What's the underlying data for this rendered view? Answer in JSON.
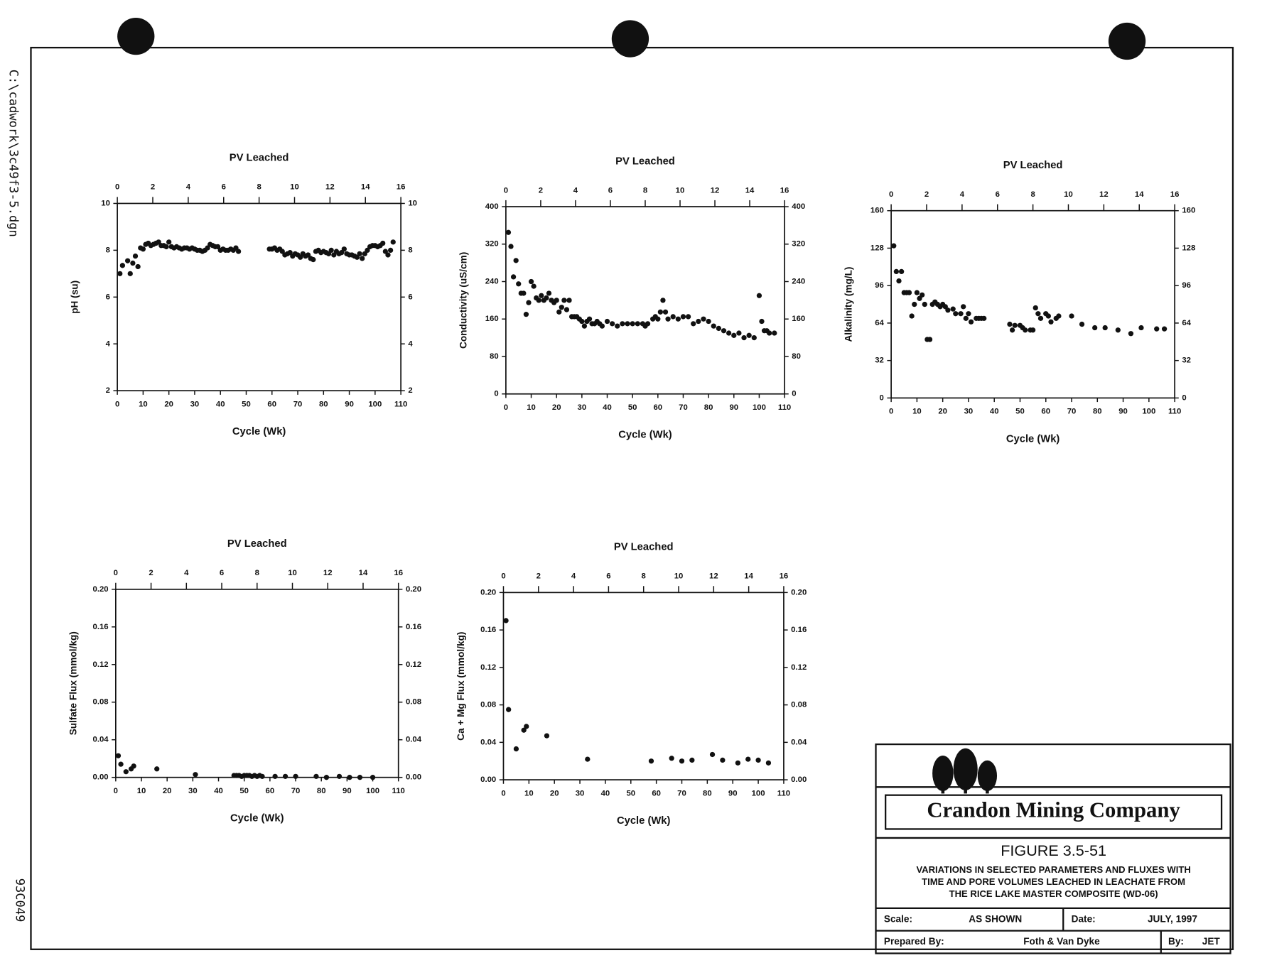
{
  "chart_data": [
    {
      "type": "scatter",
      "title": "PV Leached",
      "xlabel": "Cycle (Wk)",
      "ylabel": "pH (su)",
      "xlim": [
        0,
        110
      ],
      "xticks": [
        0,
        10,
        20,
        30,
        40,
        50,
        60,
        70,
        80,
        90,
        100,
        110
      ],
      "x2lim": [
        0,
        16
      ],
      "x2ticks": [
        0,
        2,
        4,
        6,
        8,
        10,
        12,
        14,
        16
      ],
      "ylim": [
        2,
        10
      ],
      "yticks": [
        2,
        4,
        6,
        8,
        10
      ],
      "color": "#111111",
      "x": [
        1,
        2,
        4,
        5,
        6,
        7,
        8,
        9,
        10,
        11,
        12,
        13,
        14,
        15,
        16,
        17,
        18,
        19,
        20,
        21,
        22,
        23,
        24,
        25,
        26,
        27,
        28,
        29,
        30,
        31,
        32,
        33,
        34,
        35,
        36,
        37,
        38,
        39,
        40,
        41,
        42,
        43,
        44,
        45,
        46,
        47,
        59,
        60,
        61,
        62,
        63,
        64,
        65,
        66,
        67,
        68,
        69,
        70,
        71,
        72,
        73,
        74,
        75,
        76,
        77,
        78,
        79,
        80,
        81,
        82,
        83,
        84,
        85,
        86,
        87,
        88,
        89,
        90,
        91,
        92,
        93,
        94,
        95,
        96,
        97,
        98,
        99,
        100,
        101,
        102,
        103,
        104,
        105,
        106,
        107
      ],
      "values": [
        7.0,
        7.35,
        7.55,
        7.0,
        7.45,
        7.75,
        7.3,
        8.1,
        8.05,
        8.25,
        8.3,
        8.2,
        8.25,
        8.3,
        8.35,
        8.2,
        8.2,
        8.15,
        8.35,
        8.15,
        8.1,
        8.15,
        8.1,
        8.05,
        8.1,
        8.1,
        8.05,
        8.1,
        8.05,
        8.0,
        8.0,
        7.95,
        8.0,
        8.1,
        8.25,
        8.2,
        8.15,
        8.15,
        8.0,
        8.05,
        8.0,
        8.0,
        8.05,
        8.0,
        8.1,
        7.95,
        8.05,
        8.05,
        8.1,
        8.0,
        8.05,
        7.95,
        7.8,
        7.85,
        7.9,
        7.75,
        7.85,
        7.8,
        7.7,
        7.85,
        7.75,
        7.8,
        7.65,
        7.6,
        7.95,
        8.0,
        7.9,
        7.95,
        7.9,
        7.85,
        8.0,
        7.8,
        7.95,
        7.85,
        7.9,
        8.05,
        7.85,
        7.8,
        7.8,
        7.75,
        7.7,
        7.85,
        7.65,
        7.85,
        8.0,
        8.15,
        8.2,
        8.2,
        8.15,
        8.2,
        8.3,
        7.95,
        7.8,
        8.0,
        8.35
      ]
    },
    {
      "type": "scatter",
      "title": "PV Leached",
      "xlabel": "Cycle (Wk)",
      "ylabel": "Conductivity (uS/cm)",
      "xlim": [
        0,
        110
      ],
      "xticks": [
        0,
        10,
        20,
        30,
        40,
        50,
        60,
        70,
        80,
        90,
        100,
        110
      ],
      "x2lim": [
        0,
        16
      ],
      "x2ticks": [
        0,
        2,
        4,
        6,
        8,
        10,
        12,
        14,
        16
      ],
      "ylim": [
        0,
        400
      ],
      "yticks": [
        0,
        80,
        160,
        240,
        320,
        400
      ],
      "color": "#111111",
      "x": [
        1,
        2,
        3,
        4,
        5,
        6,
        7,
        8,
        9,
        10,
        11,
        12,
        13,
        14,
        15,
        16,
        17,
        18,
        19,
        20,
        21,
        22,
        23,
        24,
        25,
        26,
        27,
        28,
        29,
        30,
        31,
        32,
        33,
        34,
        35,
        36,
        37,
        38,
        40,
        42,
        44,
        46,
        48,
        50,
        52,
        54,
        55,
        56,
        58,
        59,
        60,
        61,
        62,
        63,
        64,
        66,
        68,
        70,
        72,
        74,
        76,
        78,
        80,
        82,
        84,
        86,
        88,
        90,
        92,
        94,
        96,
        98,
        100,
        101,
        102,
        103,
        104,
        106
      ],
      "values": [
        345,
        315,
        250,
        285,
        235,
        215,
        215,
        170,
        195,
        240,
        230,
        205,
        200,
        210,
        200,
        205,
        215,
        200,
        195,
        200,
        175,
        185,
        200,
        180,
        200,
        165,
        165,
        165,
        160,
        155,
        145,
        155,
        160,
        150,
        150,
        155,
        150,
        145,
        155,
        150,
        145,
        150,
        150,
        150,
        150,
        150,
        145,
        150,
        160,
        165,
        160,
        175,
        200,
        175,
        160,
        165,
        160,
        165,
        165,
        150,
        155,
        160,
        155,
        145,
        140,
        135,
        130,
        125,
        130,
        120,
        125,
        120,
        210,
        155,
        135,
        135,
        130,
        130
      ]
    },
    {
      "type": "scatter",
      "title": "PV Leached",
      "xlabel": "Cycle (Wk)",
      "ylabel": "Alkalinity (mg/L)",
      "xlim": [
        0,
        110
      ],
      "xticks": [
        0,
        10,
        20,
        30,
        40,
        50,
        60,
        70,
        80,
        90,
        100,
        110
      ],
      "x2lim": [
        0,
        16
      ],
      "x2ticks": [
        0,
        2,
        4,
        6,
        8,
        10,
        12,
        14,
        16
      ],
      "ylim": [
        0,
        160
      ],
      "yticks": [
        0,
        32,
        64,
        96,
        128,
        160
      ],
      "color": "#111111",
      "x": [
        1,
        2,
        3,
        4,
        5,
        6,
        7,
        8,
        9,
        10,
        11,
        12,
        13,
        14,
        15,
        16,
        17,
        18,
        19,
        20,
        21,
        22,
        24,
        25,
        27,
        28,
        29,
        30,
        31,
        33,
        34,
        35,
        36,
        46,
        47,
        48,
        50,
        51,
        52,
        54,
        55,
        56,
        57,
        58,
        60,
        61,
        62,
        64,
        65,
        70,
        74,
        79,
        83,
        88,
        93,
        97,
        103,
        106
      ],
      "values": [
        130,
        108,
        100,
        108,
        90,
        90,
        90,
        70,
        80,
        90,
        85,
        88,
        80,
        50,
        50,
        80,
        82,
        80,
        78,
        80,
        78,
        75,
        76,
        72,
        72,
        78,
        68,
        72,
        65,
        68,
        68,
        68,
        68,
        63,
        58,
        62,
        62,
        60,
        58,
        58,
        58,
        77,
        72,
        68,
        72,
        70,
        65,
        68,
        70,
        70,
        63,
        60,
        60,
        58,
        55,
        60,
        59,
        59
      ]
    },
    {
      "type": "scatter",
      "title": "PV Leached",
      "xlabel": "Cycle (Wk)",
      "ylabel": "Sulfate Flux (mmol/kg)",
      "xlim": [
        0,
        110
      ],
      "xticks": [
        0,
        10,
        20,
        30,
        40,
        50,
        60,
        70,
        80,
        90,
        100,
        110
      ],
      "x2lim": [
        0,
        16
      ],
      "x2ticks": [
        0,
        2,
        4,
        6,
        8,
        10,
        12,
        14,
        16
      ],
      "ylim": [
        0,
        0.2
      ],
      "yticks": [
        {
          "value": 0,
          "label": "0.00"
        },
        0.04,
        0.08,
        0.12,
        0.16,
        {
          "value": 0.2,
          "label": "0.20"
        }
      ],
      "color": "#111111",
      "x": [
        1,
        2,
        4,
        6,
        7,
        16,
        31,
        46,
        47,
        48,
        49,
        50,
        51,
        52,
        53,
        54,
        55,
        56,
        57,
        62,
        66,
        70,
        78,
        82,
        87,
        91,
        95,
        100
      ],
      "values": [
        0.023,
        0.014,
        0.006,
        0.009,
        0.012,
        0.009,
        0.003,
        0.002,
        0.002,
        0.002,
        0.001,
        0.002,
        0.002,
        0.002,
        0.001,
        0.002,
        0.001,
        0.002,
        0.001,
        0.001,
        0.001,
        0.001,
        0.001,
        0,
        0.001,
        0,
        0,
        0
      ]
    },
    {
      "type": "scatter",
      "title": "PV Leached",
      "xlabel": "Cycle (Wk)",
      "ylabel": "Ca + Mg Flux (mmol/kg)",
      "xlim": [
        0,
        110
      ],
      "xticks": [
        0,
        10,
        20,
        30,
        40,
        50,
        60,
        70,
        80,
        90,
        100,
        110
      ],
      "x2lim": [
        0,
        16
      ],
      "x2ticks": [
        0,
        2,
        4,
        6,
        8,
        10,
        12,
        14,
        16
      ],
      "ylim": [
        0,
        0.2
      ],
      "yticks": [
        {
          "value": 0,
          "label": "0.00"
        },
        0.04,
        0.08,
        0.12,
        0.16,
        {
          "value": 0.2,
          "label": "0.20"
        }
      ],
      "color": "#111111",
      "x": [
        1,
        2,
        5,
        8,
        9,
        17,
        33,
        58,
        66,
        70,
        74,
        82,
        86,
        92,
        96,
        100,
        104
      ],
      "values": [
        0.17,
        0.075,
        0.033,
        0.053,
        0.057,
        0.047,
        0.022,
        0.02,
        0.023,
        0.02,
        0.021,
        0.027,
        0.021,
        0.018,
        0.022,
        0.021,
        0.018
      ]
    }
  ],
  "document": {
    "file_path": "C:\\cadwork\\3c49f3-5.dgn",
    "sheet_id": "93C049",
    "title_block": {
      "company": "Crandon Mining Company",
      "figure": "FIGURE 3.5-51",
      "description": [
        "VARIATIONS IN SELECTED PARAMETERS AND FLUXES WITH",
        "TIME AND PORE VOLUMES LEACHED IN LEACHATE FROM",
        "THE RICE LAKE MASTER COMPOSITE (WD-06)"
      ],
      "scale_label": "Scale:",
      "scale": "AS SHOWN",
      "date_label": "Date:",
      "date": "JULY, 1997",
      "prepared_by_label": "Prepared By:",
      "prepared_by": "Foth & Van Dyke",
      "by_label": "By:",
      "by": "JET"
    }
  }
}
